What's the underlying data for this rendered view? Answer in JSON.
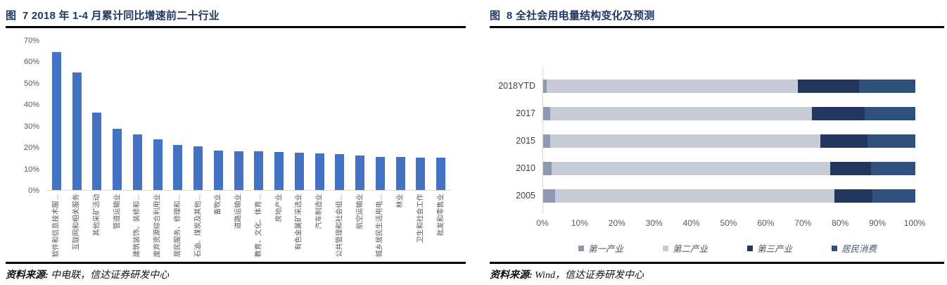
{
  "left_panel": {
    "title": "图  7 2018 年 1-4 月累计同比增速前二十行业",
    "source_prefix": "资料来源: ",
    "source_text": "中电联，信达证券研发中心"
  },
  "right_panel": {
    "title": "图  8 全社会用电量结构变化及预测",
    "source_prefix": "资料来源: ",
    "source_text": "Wind，信达证券研发中心"
  },
  "colors": {
    "bar_blue": "#4472C4",
    "title_navy": "#1F3864",
    "axis_gray": "#595959",
    "axis_line": "#D9D9D9"
  },
  "chart_data": [
    {
      "type": "bar",
      "title": "2018 年 1-4 月累计同比增速前二十行业",
      "categories": [
        "软件和信息技术服…",
        "互联网和相关服务",
        "其他采矿活动",
        "管道运输业",
        "建筑装饰、装修和…",
        "废弃资源综合利用业",
        "居民服务、修理和…",
        "石油、煤炭及其他…",
        "畜牧业",
        "道路运输业",
        "教育、文化、体育…",
        "房地产业",
        "有色金属矿采选业",
        "汽车制造业",
        "公共管理和社会组…",
        "航空运输业",
        "城乡居民生活用电…",
        "林业",
        "卫生和社会工作",
        "批发和零售业"
      ],
      "values": [
        64.3,
        55.0,
        36.0,
        28.5,
        26.1,
        23.8,
        21.0,
        20.5,
        18.3,
        18.1,
        18.0,
        17.8,
        17.5,
        17.1,
        16.7,
        16.2,
        15.6,
        15.4,
        15.2,
        15.0
      ],
      "xlabel": "",
      "ylabel": "",
      "ylim": [
        0,
        70
      ],
      "yticks": [
        "0%",
        "10%",
        "20%",
        "30%",
        "40%",
        "50%",
        "60%",
        "70%"
      ],
      "grid": false,
      "bar_color": "#4472C4"
    },
    {
      "type": "bar-horizontal-stacked",
      "title": "全社会用电量结构变化及预测",
      "categories": [
        "2018YTD",
        "2017",
        "2015",
        "2010",
        "2005"
      ],
      "series": [
        {
          "name": "第一产业",
          "color": "#8B99B1",
          "values": [
            1.0,
            1.9,
            1.8,
            2.3,
            3.2
          ]
        },
        {
          "name": "第二产业",
          "color": "#C6CBD6",
          "values": [
            67.5,
            70.3,
            72.7,
            74.9,
            75.1
          ]
        },
        {
          "name": "第三产业",
          "color": "#22365E",
          "values": [
            16.3,
            14.2,
            12.7,
            10.8,
            10.1
          ]
        },
        {
          "name": "居民消费",
          "color": "#2F4F7D",
          "values": [
            15.2,
            13.6,
            12.8,
            12.0,
            11.6
          ]
        }
      ],
      "xlabel": "",
      "ylabel": "",
      "xlim": [
        0,
        100
      ],
      "xticks": [
        "0%",
        "10%",
        "20%",
        "30%",
        "40%",
        "50%",
        "60%",
        "70%",
        "80%",
        "90%",
        "100%"
      ],
      "grid": false,
      "legend_position": "bottom"
    }
  ]
}
